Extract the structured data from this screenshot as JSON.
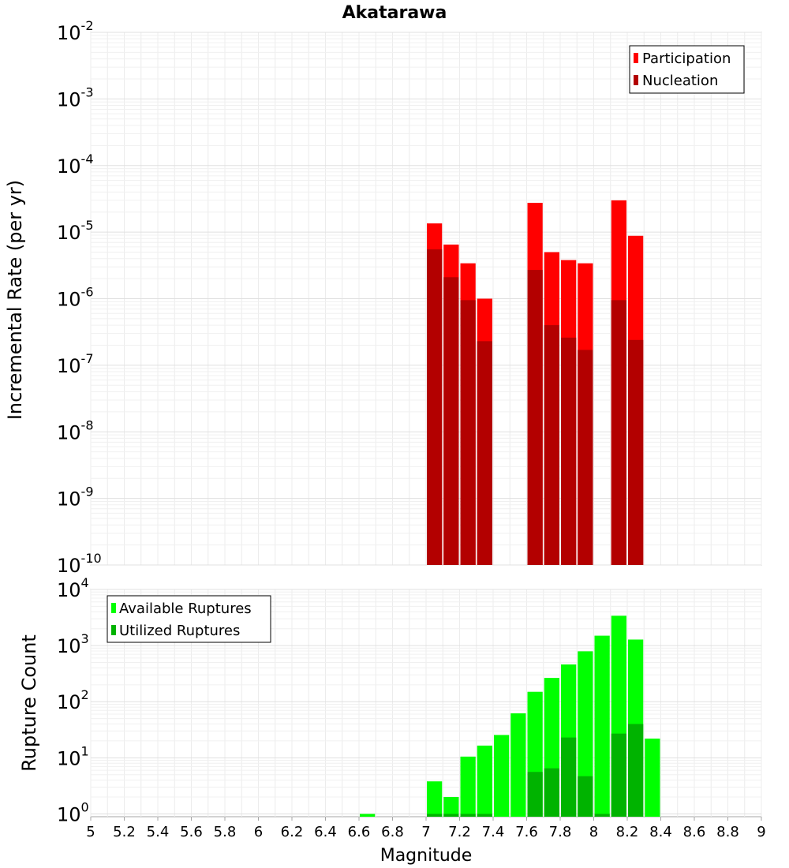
{
  "title": "Akatarawa",
  "xlabel": "Magnitude",
  "chart_data": [
    {
      "type": "bar",
      "name": "rate-panel",
      "ylabel": "Incremental Rate (per yr)",
      "yscale": "log",
      "ylim_exp": [
        -10,
        -2
      ],
      "ytick_exponents": [
        "-10",
        "-9",
        "-8",
        "-7",
        "-6",
        "-5",
        "-4",
        "-3",
        "-2"
      ],
      "legend": [
        "Participation",
        "Nucleation"
      ],
      "legend_position": "top-right",
      "series": [
        {
          "name": "Participation",
          "color": "#ff0000",
          "x": [
            7.05,
            7.15,
            7.25,
            7.35,
            7.65,
            7.75,
            7.85,
            7.95,
            8.15,
            8.25
          ],
          "values": [
            1.35e-05,
            6.5e-06,
            3.4e-06,
            1e-06,
            2.75e-05,
            5e-06,
            3.8e-06,
            3.4e-06,
            3e-05,
            8.8e-06
          ]
        },
        {
          "name": "Nucleation",
          "color": "#b30000",
          "x": [
            7.05,
            7.15,
            7.25,
            7.35,
            7.65,
            7.75,
            7.85,
            7.95,
            8.15,
            8.25
          ],
          "values": [
            5.5e-06,
            2.1e-06,
            9.5e-07,
            2.3e-07,
            2.7e-06,
            4e-07,
            2.6e-07,
            1.7e-07,
            9.5e-07,
            2.4e-07
          ]
        }
      ]
    },
    {
      "type": "bar",
      "name": "count-panel",
      "ylabel": "Rupture Count",
      "yscale": "log",
      "ylim_exp": [
        -0.05,
        4
      ],
      "ytick_exponents": [
        "0",
        "1",
        "2",
        "3",
        "4"
      ],
      "legend": [
        "Available Ruptures",
        "Utilized Ruptures"
      ],
      "legend_position": "top-left",
      "series": [
        {
          "name": "Available Ruptures",
          "color": "#00ff00",
          "x": [
            6.65,
            7.05,
            7.15,
            7.25,
            7.35,
            7.45,
            7.55,
            7.65,
            7.75,
            7.85,
            7.95,
            8.05,
            8.15,
            8.25,
            8.35
          ],
          "values": [
            1,
            3.8,
            2,
            10.5,
            16.5,
            25.5,
            62,
            150,
            265,
            460,
            790,
            1500,
            3400,
            1280,
            22
          ]
        },
        {
          "name": "Utilized Ruptures",
          "color": "#00b300",
          "x": [
            7.05,
            7.15,
            7.25,
            7.35,
            7.65,
            7.75,
            7.85,
            7.95,
            8.05,
            8.15,
            8.25
          ],
          "values": [
            1,
            1,
            1,
            1,
            5.6,
            6.5,
            23,
            4.7,
            1,
            27,
            40
          ]
        }
      ]
    }
  ],
  "xaxis": {
    "xlim": [
      5,
      9
    ],
    "tick_labels": [
      "5",
      "5.2",
      "5.4",
      "5.6",
      "5.8",
      "6",
      "6.2",
      "6.4",
      "6.6",
      "6.8",
      "7",
      "7.2",
      "7.4",
      "7.6",
      "7.8",
      "8",
      "8.2",
      "8.4",
      "8.6",
      "8.8",
      "9"
    ]
  }
}
